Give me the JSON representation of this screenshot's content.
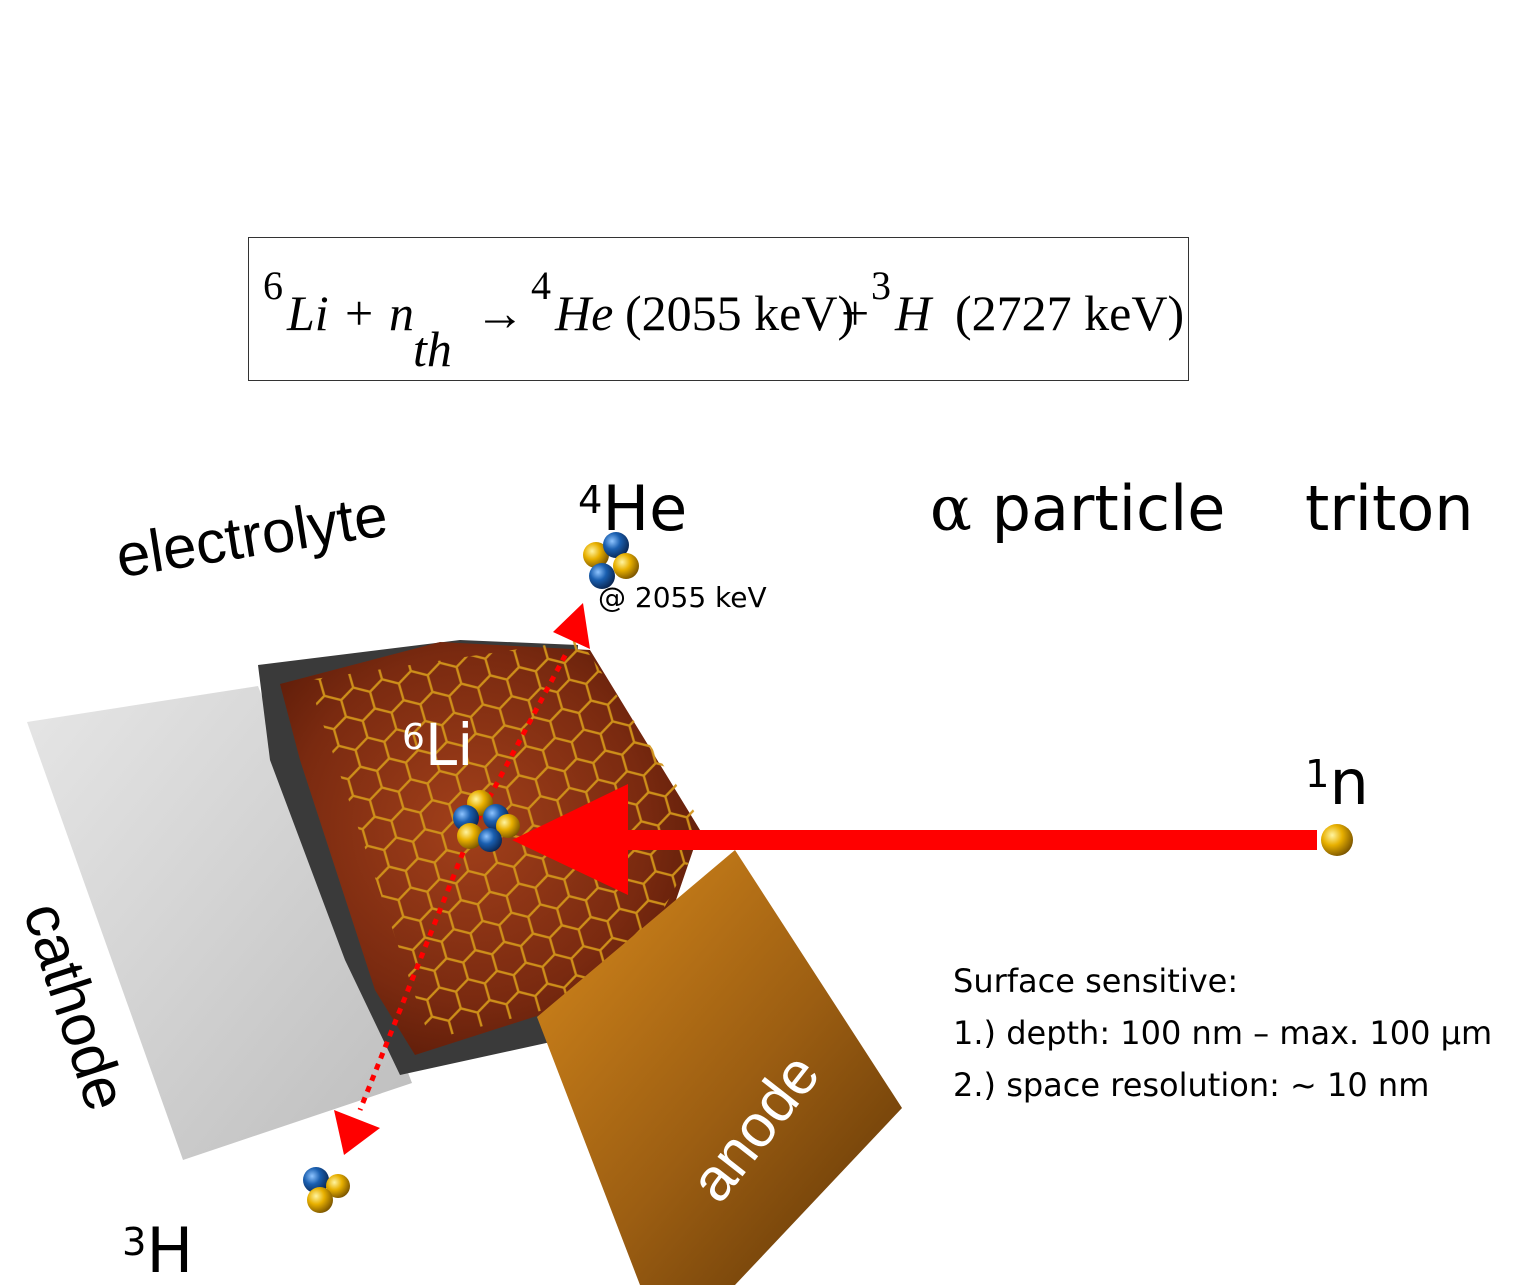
{
  "equation": {
    "li_mass": "6",
    "li": "Li",
    "plus1": "+",
    "n": "n",
    "n_sub": "th",
    "arrow": "→",
    "he_mass": "4",
    "he": "He",
    "he_energy": "(2055 keV)",
    "plus2": "+",
    "h_mass": "3",
    "h": "H",
    "h_energy": "(2727 keV)"
  },
  "labels": {
    "he_mass": "4",
    "he": "He",
    "he_energy": "@ 2055 keV",
    "alpha_symbol": "α",
    "alpha_text": " particle",
    "triton": "triton",
    "electrolyte": "electrolyte",
    "cathode": "cathode",
    "anode": "anode",
    "li_mass": "6",
    "li": "Li",
    "n_mass": "1",
    "n": "n",
    "h_mass": "3",
    "h": "H"
  },
  "notes": {
    "heading": "Surface sensitive:",
    "items": [
      "1.) depth: 100 nm – max. 100 µm",
      "2.) space resolution: ~ 10 nm"
    ]
  },
  "colors": {
    "arrow": "#ff0000",
    "proton": "#e8b000",
    "neutron_ball": "#1a5fb0",
    "electrolyte_layer": "#7a2a10",
    "anode": "#a86815",
    "cathode": "#cfcfcf",
    "graphene": "#c98a10"
  }
}
